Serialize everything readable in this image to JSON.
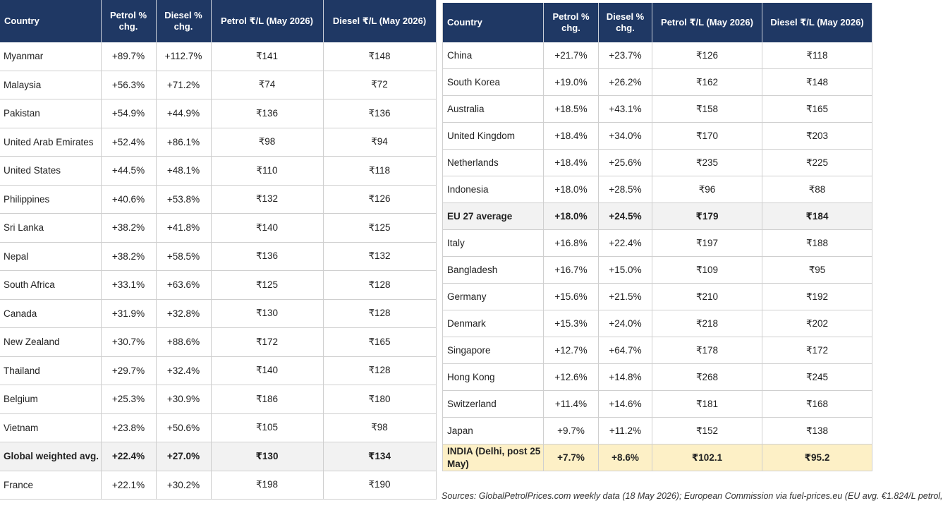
{
  "headers": {
    "country": "Country",
    "petrol_chg": "Petrol % chg.",
    "diesel_chg": "Diesel % chg.",
    "petrol_price": "Petrol ₹/L (May 2026)",
    "diesel_price": "Diesel ₹/L (May 2026)"
  },
  "left_rows": [
    {
      "country": "Myanmar",
      "petrol_chg": "+89.7%",
      "diesel_chg": "+112.7%",
      "petrol_price": "₹141",
      "diesel_price": "₹148"
    },
    {
      "country": "Malaysia",
      "petrol_chg": "+56.3%",
      "diesel_chg": "+71.2%",
      "petrol_price": "₹74",
      "diesel_price": "₹72"
    },
    {
      "country": "Pakistan",
      "petrol_chg": "+54.9%",
      "diesel_chg": "+44.9%",
      "petrol_price": "₹136",
      "diesel_price": "₹136"
    },
    {
      "country": "United Arab Emirates",
      "petrol_chg": "+52.4%",
      "diesel_chg": "+86.1%",
      "petrol_price": "₹98",
      "diesel_price": "₹94"
    },
    {
      "country": "United States",
      "petrol_chg": "+44.5%",
      "diesel_chg": "+48.1%",
      "petrol_price": "₹110",
      "diesel_price": "₹118"
    },
    {
      "country": "Philippines",
      "petrol_chg": "+40.6%",
      "diesel_chg": "+53.8%",
      "petrol_price": "₹132",
      "diesel_price": "₹126"
    },
    {
      "country": "Sri Lanka",
      "petrol_chg": "+38.2%",
      "diesel_chg": "+41.8%",
      "petrol_price": "₹140",
      "diesel_price": "₹125"
    },
    {
      "country": "Nepal",
      "petrol_chg": "+38.2%",
      "diesel_chg": "+58.5%",
      "petrol_price": "₹136",
      "diesel_price": "₹132"
    },
    {
      "country": "South Africa",
      "petrol_chg": "+33.1%",
      "diesel_chg": "+63.6%",
      "petrol_price": "₹125",
      "diesel_price": "₹128"
    },
    {
      "country": "Canada",
      "petrol_chg": "+31.9%",
      "diesel_chg": "+32.8%",
      "petrol_price": "₹130",
      "diesel_price": "₹128"
    },
    {
      "country": "New Zealand",
      "petrol_chg": "+30.7%",
      "diesel_chg": "+88.6%",
      "petrol_price": "₹172",
      "diesel_price": "₹165"
    },
    {
      "country": "Thailand",
      "petrol_chg": "+29.7%",
      "diesel_chg": "+32.4%",
      "petrol_price": "₹140",
      "diesel_price": "₹128"
    },
    {
      "country": "Belgium",
      "petrol_chg": "+25.3%",
      "diesel_chg": "+30.9%",
      "petrol_price": "₹186",
      "diesel_price": "₹180"
    },
    {
      "country": "Vietnam",
      "petrol_chg": "+23.8%",
      "diesel_chg": "+50.6%",
      "petrol_price": "₹105",
      "diesel_price": "₹98"
    },
    {
      "country": "Global weighted avg.",
      "petrol_chg": "+22.4%",
      "diesel_chg": "+27.0%",
      "petrol_price": "₹130",
      "diesel_price": "₹134",
      "style": "highlight"
    },
    {
      "country": "France",
      "petrol_chg": "+22.1%",
      "diesel_chg": "+30.2%",
      "petrol_price": "₹198",
      "diesel_price": "₹190"
    }
  ],
  "right_rows": [
    {
      "country": "China",
      "petrol_chg": "+21.7%",
      "diesel_chg": "+23.7%",
      "petrol_price": "₹126",
      "diesel_price": "₹118"
    },
    {
      "country": "South Korea",
      "petrol_chg": "+19.0%",
      "diesel_chg": "+26.2%",
      "petrol_price": "₹162",
      "diesel_price": "₹148"
    },
    {
      "country": "Australia",
      "petrol_chg": "+18.5%",
      "diesel_chg": "+43.1%",
      "petrol_price": "₹158",
      "diesel_price": "₹165"
    },
    {
      "country": "United Kingdom",
      "petrol_chg": "+18.4%",
      "diesel_chg": "+34.0%",
      "petrol_price": "₹170",
      "diesel_price": "₹203"
    },
    {
      "country": "Netherlands",
      "petrol_chg": "+18.4%",
      "diesel_chg": "+25.6%",
      "petrol_price": "₹235",
      "diesel_price": "₹225"
    },
    {
      "country": "Indonesia",
      "petrol_chg": "+18.0%",
      "diesel_chg": "+28.5%",
      "petrol_price": "₹96",
      "diesel_price": "₹88"
    },
    {
      "country": "EU 27 average",
      "petrol_chg": "+18.0%",
      "diesel_chg": "+24.5%",
      "petrol_price": "₹179",
      "diesel_price": "₹184",
      "style": "highlight"
    },
    {
      "country": "Italy",
      "petrol_chg": "+16.8%",
      "diesel_chg": "+22.4%",
      "petrol_price": "₹197",
      "diesel_price": "₹188"
    },
    {
      "country": "Bangladesh",
      "petrol_chg": "+16.7%",
      "diesel_chg": "+15.0%",
      "petrol_price": "₹109",
      "diesel_price": "₹95"
    },
    {
      "country": "Germany",
      "petrol_chg": "+15.6%",
      "diesel_chg": "+21.5%",
      "petrol_price": "₹210",
      "diesel_price": "₹192"
    },
    {
      "country": "Denmark",
      "petrol_chg": "+15.3%",
      "diesel_chg": "+24.0%",
      "petrol_price": "₹218",
      "diesel_price": "₹202"
    },
    {
      "country": "Singapore",
      "petrol_chg": "+12.7%",
      "diesel_chg": "+64.7%",
      "petrol_price": "₹178",
      "diesel_price": "₹172"
    },
    {
      "country": "Hong Kong",
      "petrol_chg": "+12.6%",
      "diesel_chg": "+14.8%",
      "petrol_price": "₹268",
      "diesel_price": "₹245"
    },
    {
      "country": "Switzerland",
      "petrol_chg": "+11.4%",
      "diesel_chg": "+14.6%",
      "petrol_price": "₹181",
      "diesel_price": "₹168"
    },
    {
      "country": "Japan",
      "petrol_chg": "+9.7%",
      "diesel_chg": "+11.2%",
      "petrol_price": "₹152",
      "diesel_price": "₹138"
    },
    {
      "country": "INDIA (Delhi, post 25 May)",
      "petrol_chg": "+7.7%",
      "diesel_chg": "+8.6%",
      "petrol_price": "₹102.1",
      "diesel_price": "₹95.2",
      "style": "india"
    }
  ],
  "sources": "Sources: GlobalPetrolPrices.com weekly data (18 May 2026); European Commission via fuel-prices.eu (EU avg. €1.824/L petrol,",
  "colors": {
    "header_bg": "#1f3864",
    "highlight_row": "#f2f2f2",
    "india_row": "#fdf0c6"
  }
}
